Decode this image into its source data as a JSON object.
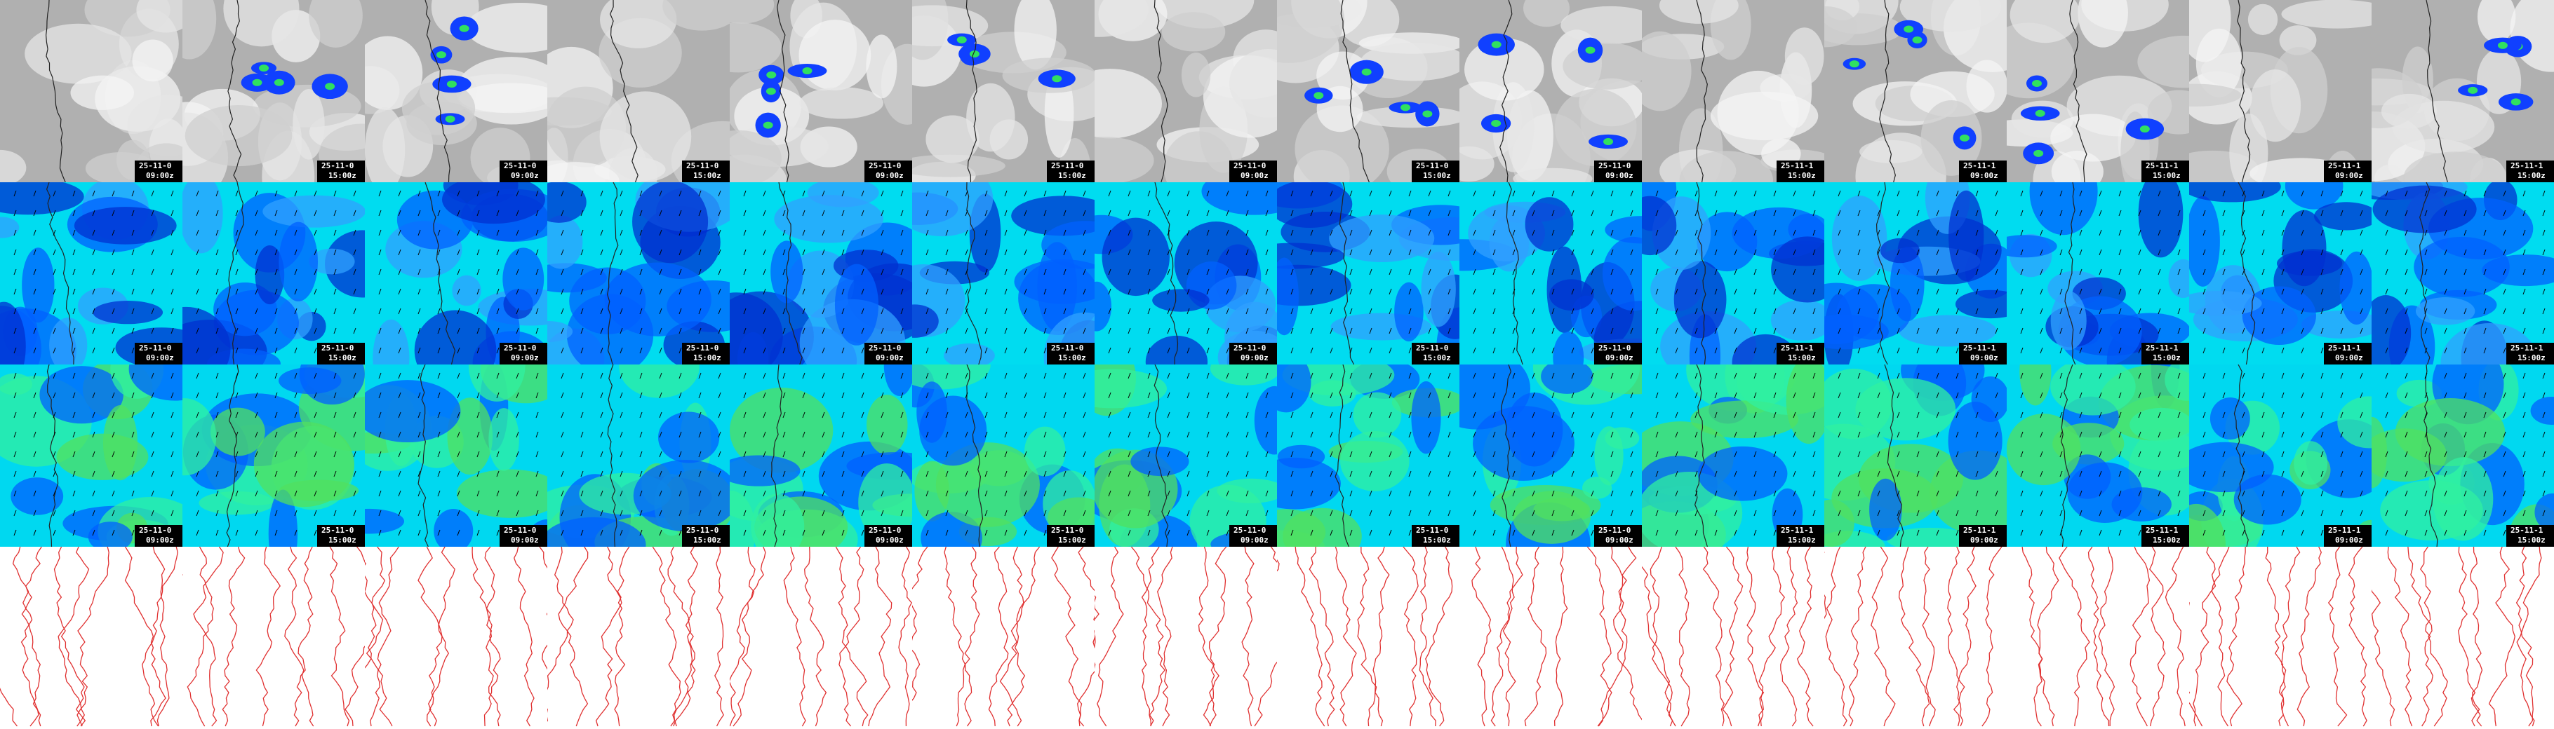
{
  "columns": [
    {
      "date": "25-11-0",
      "time": "09:00z"
    },
    {
      "date": "25-11-0",
      "time": "15:00z"
    },
    {
      "date": "25-11-0",
      "time": "09:00z"
    },
    {
      "date": "25-11-0",
      "time": "15:00z"
    },
    {
      "date": "25-11-0",
      "time": "09:00z"
    },
    {
      "date": "25-11-0",
      "time": "15:00z"
    },
    {
      "date": "25-11-0",
      "time": "09:00z"
    },
    {
      "date": "25-11-0",
      "time": "15:00z"
    },
    {
      "date": "25-11-0",
      "time": "09:00z"
    },
    {
      "date": "25-11-1",
      "time": "15:00z"
    },
    {
      "date": "25-11-1",
      "time": "09:00z"
    },
    {
      "date": "25-11-1",
      "time": "15:00z"
    },
    {
      "date": "25-11-1",
      "time": "09:00z"
    },
    {
      "date": "25-11-1",
      "time": "15:00z"
    }
  ]
}
